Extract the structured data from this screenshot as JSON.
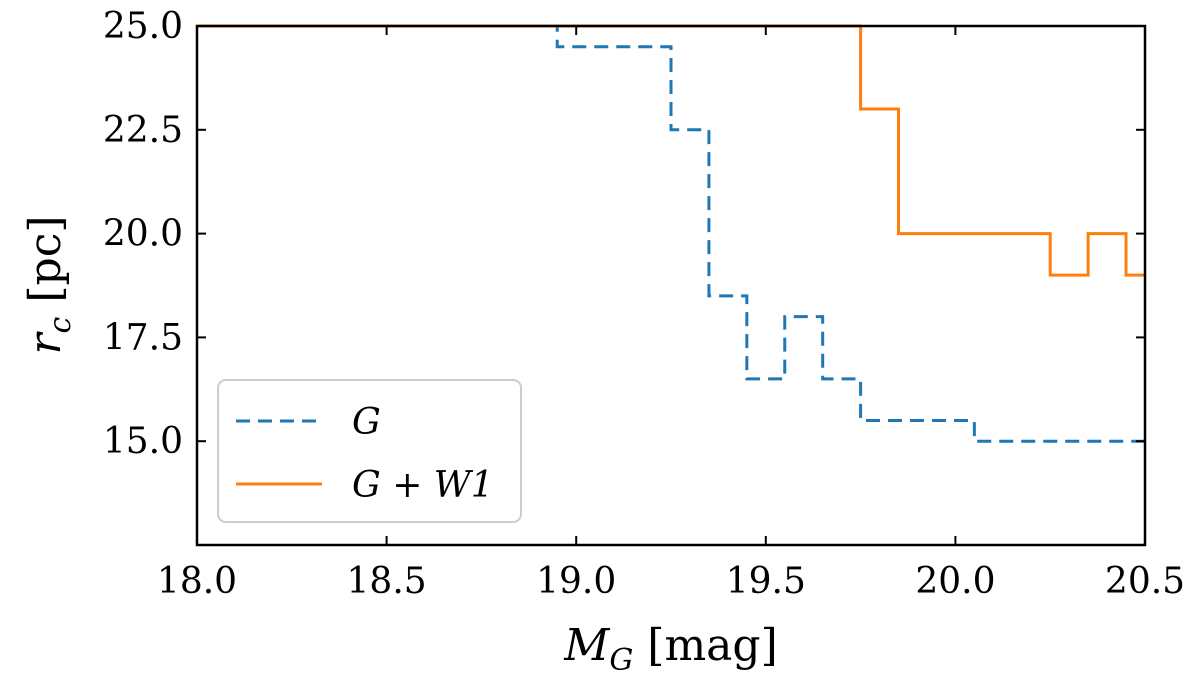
{
  "chart_data": {
    "type": "line",
    "step": "post",
    "xlim": [
      18.0,
      20.5
    ],
    "ylim": [
      12.5,
      25.0
    ],
    "xlabel": {
      "main": "M",
      "sub": "G",
      "unit": "[mag]"
    },
    "ylabel": {
      "main": "r",
      "sub": "c",
      "unit": "[pc]"
    },
    "xticks": [
      18.0,
      18.5,
      19.0,
      19.5,
      20.0,
      20.5
    ],
    "xtick_labels": [
      "18.0",
      "18.5",
      "19.0",
      "19.5",
      "20.0",
      "20.5"
    ],
    "yticks": [
      15.0,
      17.5,
      20.0,
      22.5,
      25.0
    ],
    "ytick_labels": [
      "15.0",
      "17.5",
      "20.0",
      "22.5",
      "25.0"
    ],
    "legend_position": "lower-left",
    "series": [
      {
        "name": "G",
        "color": "#1f77b4",
        "dash": "dashed",
        "x": [
          18.0,
          18.95,
          19.25,
          19.35,
          19.45,
          19.55,
          19.65,
          19.75,
          20.05,
          20.5
        ],
        "y": [
          25.0,
          24.5,
          22.5,
          18.5,
          16.5,
          18.0,
          16.5,
          15.5,
          15.0,
          15.0
        ]
      },
      {
        "name": "G + W1",
        "color": "#ff7f0e",
        "dash": "solid",
        "x": [
          18.0,
          19.75,
          19.85,
          20.25,
          20.35,
          20.45,
          20.5
        ],
        "y": [
          25.0,
          23.0,
          20.0,
          19.0,
          20.0,
          19.0,
          19.0
        ]
      }
    ]
  }
}
